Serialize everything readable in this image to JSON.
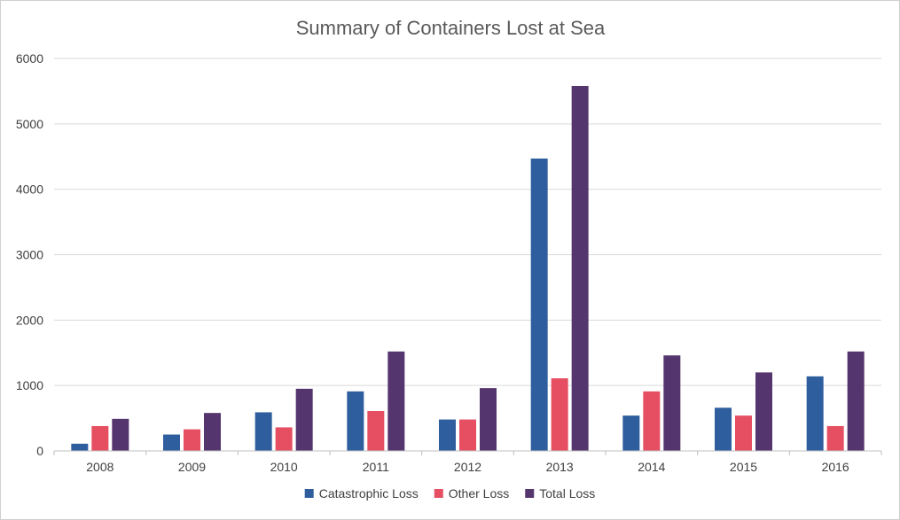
{
  "chart_data": {
    "type": "bar",
    "title": "Summary of Containers Lost at Sea",
    "xlabel": "",
    "ylabel": "",
    "categories": [
      "2008",
      "2009",
      "2010",
      "2011",
      "2012",
      "2013",
      "2014",
      "2015",
      "2016"
    ],
    "ylim": [
      0,
      6000
    ],
    "yticks": [
      0,
      1000,
      2000,
      3000,
      4000,
      5000,
      6000
    ],
    "grid": true,
    "legend_position": "bottom",
    "series": [
      {
        "name": "Catastrophic Loss",
        "color": "#2e5e9e",
        "values": [
          110,
          250,
          590,
          910,
          480,
          4470,
          540,
          660,
          1140
        ]
      },
      {
        "name": "Other Loss",
        "color": "#e64f62",
        "values": [
          380,
          330,
          360,
          610,
          480,
          1110,
          910,
          540,
          380
        ]
      },
      {
        "name": "Total Loss",
        "color": "#55356e",
        "values": [
          490,
          580,
          950,
          1520,
          960,
          5580,
          1460,
          1200,
          1520
        ]
      }
    ]
  }
}
